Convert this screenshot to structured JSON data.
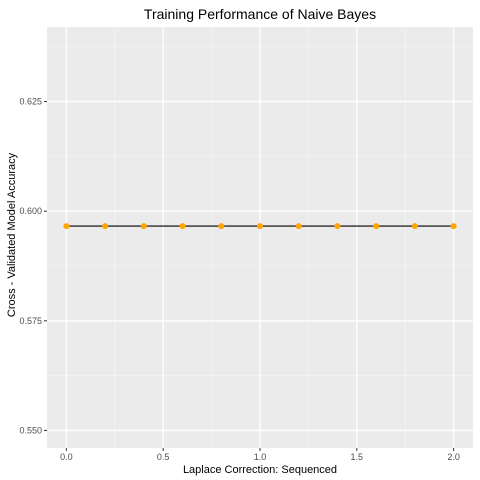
{
  "chart_data": {
    "type": "line",
    "title": "Training Performance of Naive Bayes",
    "xlabel": "Laplace Correction: Sequenced",
    "ylabel": "Cross - Validated Model Accuracy",
    "xlim": [
      -0.1,
      2.1
    ],
    "ylim": [
      0.546,
      0.642
    ],
    "x_ticks": [
      0.0,
      0.5,
      1.0,
      1.5,
      2.0
    ],
    "x_tick_labels": [
      "0.0",
      "0.5",
      "1.0",
      "1.5",
      "2.0"
    ],
    "y_ticks": [
      0.55,
      0.575,
      0.6,
      0.625
    ],
    "y_tick_labels": [
      "0.550",
      "0.575",
      "0.600",
      "0.625"
    ],
    "grid": true,
    "series": [
      {
        "x": [
          0.0,
          0.2,
          0.4,
          0.6,
          0.8,
          1.0,
          1.2,
          1.4,
          1.6,
          1.8,
          2.0
        ],
        "values": [
          0.5966,
          0.5966,
          0.5966,
          0.5966,
          0.5966,
          0.5966,
          0.5966,
          0.5966,
          0.5966,
          0.5966,
          0.5966
        ],
        "line_color": "#000000",
        "point_color": "#FFA500"
      }
    ],
    "colors": {
      "panel_background": "#EBEBEB",
      "grid_major": "#FFFFFF",
      "grid_minor": "#F5F5F5"
    }
  }
}
